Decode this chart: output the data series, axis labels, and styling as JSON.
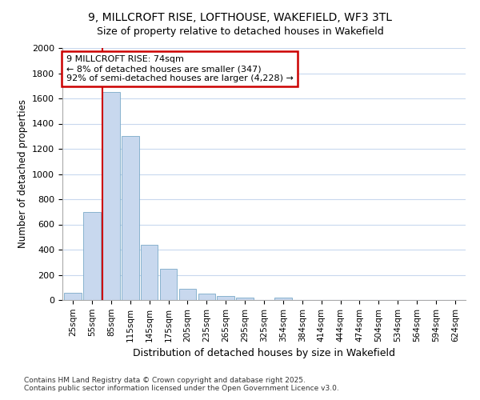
{
  "title_line1": "9, MILLCROFT RISE, LOFTHOUSE, WAKEFIELD, WF3 3TL",
  "title_line2": "Size of property relative to detached houses in Wakefield",
  "xlabel": "Distribution of detached houses by size in Wakefield",
  "ylabel": "Number of detached properties",
  "bar_color": "#c8d8ee",
  "bar_edge_color": "#7aaac8",
  "background_color": "#ffffff",
  "fig_background_color": "#ffffff",
  "grid_color": "#c8d8ee",
  "annotation_box_edge_color": "#cc0000",
  "vline_color": "#cc0000",
  "categories": [
    "25sqm",
    "55sqm",
    "85sqm",
    "115sqm",
    "145sqm",
    "175sqm",
    "205sqm",
    "235sqm",
    "265sqm",
    "295sqm",
    "325sqm",
    "354sqm",
    "384sqm",
    "414sqm",
    "444sqm",
    "474sqm",
    "504sqm",
    "534sqm",
    "564sqm",
    "594sqm",
    "624sqm"
  ],
  "values": [
    60,
    700,
    1650,
    1300,
    440,
    250,
    90,
    50,
    30,
    20,
    0,
    20,
    0,
    0,
    0,
    0,
    0,
    0,
    0,
    0,
    0
  ],
  "ylim": [
    0,
    2000
  ],
  "yticks": [
    0,
    200,
    400,
    600,
    800,
    1000,
    1200,
    1400,
    1600,
    1800,
    2000
  ],
  "vline_x_index": 2,
  "annotation_title": "9 MILLCROFT RISE: 74sqm",
  "annotation_line1": "← 8% of detached houses are smaller (347)",
  "annotation_line2": "92% of semi-detached houses are larger (4,228) →",
  "footnote1": "Contains HM Land Registry data © Crown copyright and database right 2025.",
  "footnote2": "Contains public sector information licensed under the Open Government Licence v3.0."
}
